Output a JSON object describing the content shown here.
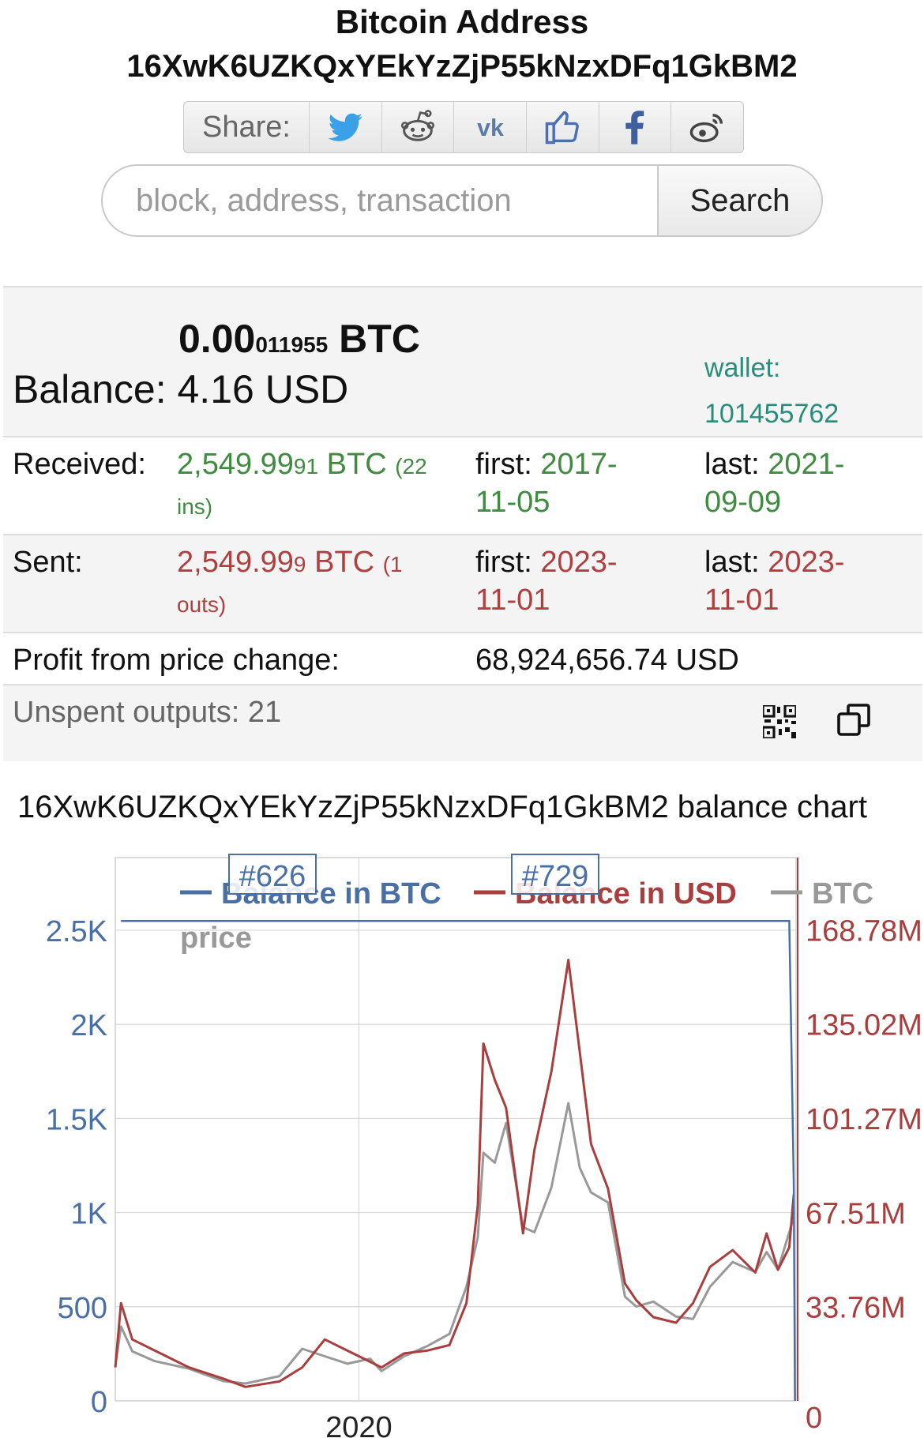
{
  "header": {
    "title_line1": "Bitcoin Address",
    "address": "16XwK6UZKQxYEkYzZjP55kNzxDFq1GkBM2"
  },
  "share": {
    "label": "Share:",
    "buttons": [
      "twitter-icon",
      "reddit-icon",
      "vk-icon",
      "like-icon",
      "facebook-icon",
      "weibo-icon"
    ]
  },
  "search": {
    "placeholder": "block, address, transaction",
    "button_label": "Search"
  },
  "balance": {
    "btc_main": "0.00",
    "btc_small": "011955",
    "btc_unit": "BTC",
    "label": "Balance:",
    "usd": "4.16 USD",
    "wallet_label": "wallet:",
    "wallet_id": "101455762"
  },
  "received": {
    "label": "Received:",
    "amount_main": "2,549.99",
    "amount_small": "91",
    "unit": "BTC",
    "count": "(22 ins)",
    "first_label": "first:",
    "first_date_a": "2017-",
    "first_date_b": "11-05",
    "last_label": "last:",
    "last_date_a": "2021-",
    "last_date_b": "09-09"
  },
  "sent": {
    "label": "Sent:",
    "amount_main": "2,549.99",
    "amount_small": "9",
    "unit": "BTC",
    "count": "(1 outs)",
    "first_label": "first:",
    "first_date_a": "2023-",
    "first_date_b": "11-01",
    "last_label": "last:",
    "last_date_a": "2023-",
    "last_date_b": "11-01"
  },
  "profit": {
    "label": "Profit from price change:",
    "value": "68,924,656.74 USD"
  },
  "unspent": {
    "label": "Unspent outputs: 21"
  },
  "chart_title": "16XwK6UZKQxYEkYzZjP55kNzxDFq1GkBM2 balance chart",
  "colors": {
    "btc": "#4a6fa5",
    "usd": "#a83e3e",
    "price": "#999999"
  },
  "chart_data": {
    "type": "line",
    "legend": [
      "Balance in BTC",
      "Balance in USD",
      "BTC price"
    ],
    "left_axis_ticks": [
      "0",
      "500",
      "1K",
      "1.5K",
      "2K",
      "2.5K"
    ],
    "right_axis_ticks": [
      "0",
      "33.76M",
      "67.51M",
      "101.27M",
      "135.02M",
      "168.78M"
    ],
    "x_ticks": [
      "2020"
    ],
    "left_ylim": [
      0,
      2550
    ],
    "right_ylim": [
      0,
      172
    ],
    "annotations": [
      "#626",
      "#729"
    ],
    "series": [
      {
        "name": "Balance in BTC",
        "x": [
          2017.9,
          2017.95,
          2018.0,
          2023.8,
          2023.84,
          2023.85
        ],
        "values": [
          2549,
          2549,
          2549,
          2549,
          1150,
          0
        ]
      },
      {
        "name": "Balance in USD",
        "x": [
          2017.85,
          2017.9,
          2018.0,
          2018.2,
          2018.5,
          2018.8,
          2019.0,
          2019.3,
          2019.5,
          2019.7,
          2019.9,
          2020.1,
          2020.2,
          2020.4,
          2020.6,
          2020.8,
          2020.95,
          2021.05,
          2021.1,
          2021.2,
          2021.3,
          2021.45,
          2021.55,
          2021.7,
          2021.85,
          2021.95,
          2022.05,
          2022.2,
          2022.35,
          2022.45,
          2022.6,
          2022.8,
          2022.95,
          2023.1,
          2023.3,
          2023.5,
          2023.6,
          2023.7,
          2023.8,
          2023.84
        ],
        "values": [
          12,
          35,
          22,
          18,
          12,
          8,
          5,
          7,
          12,
          22,
          18,
          14,
          12,
          17,
          18,
          20,
          35,
          70,
          128,
          115,
          105,
          60,
          90,
          118,
          158,
          125,
          92,
          76,
          42,
          36,
          30,
          28,
          35,
          48,
          54,
          46,
          60,
          47,
          55,
          74
        ]
      },
      {
        "name": "BTC price",
        "x": [
          2017.85,
          2017.9,
          2018.0,
          2018.2,
          2018.5,
          2018.8,
          2019.0,
          2019.3,
          2019.5,
          2019.7,
          2019.9,
          2020.1,
          2020.2,
          2020.4,
          2020.6,
          2020.8,
          2020.95,
          2021.05,
          2021.1,
          2021.2,
          2021.3,
          2021.45,
          2021.55,
          2021.7,
          2021.85,
          2021.95,
          2022.05,
          2022.2,
          2022.35,
          2022.45,
          2022.6,
          2022.8,
          2022.95,
          2023.1,
          2023.3,
          2023.5,
          2023.6,
          2023.7,
          2023.8,
          2023.84
        ],
        "values": [
          7000,
          15000,
          10000,
          8000,
          6500,
          4000,
          3500,
          5000,
          10500,
          9000,
          7500,
          8500,
          6000,
          9000,
          11000,
          13500,
          23000,
          33000,
          50000,
          48000,
          56000,
          35000,
          34000,
          43000,
          60000,
          47000,
          42000,
          40000,
          21000,
          19000,
          20000,
          17000,
          16500,
          23000,
          28000,
          26000,
          30000,
          26500,
          34000,
          37000
        ]
      }
    ]
  }
}
